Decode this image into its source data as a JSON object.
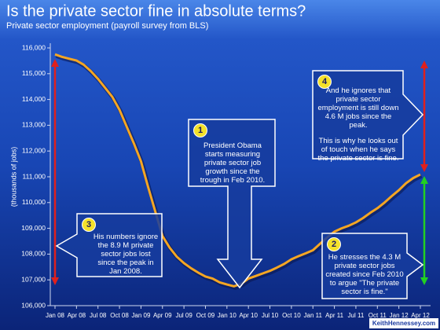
{
  "chart_data": {
    "type": "line",
    "title": "Is the private sector fine in absolute terms?",
    "subtitle": "Private sector employment (payroll survey from BLS)",
    "y_label": "(thousands of jobs)",
    "source": "KeithHennessey.com",
    "color": "#f5a623",
    "categories": [
      "Jan 08",
      null,
      null,
      "Apr 08",
      null,
      null,
      "Jul 08",
      null,
      null,
      "Oct 08",
      null,
      null,
      "Jan 09",
      null,
      null,
      "Apr 09",
      null,
      null,
      "Jul 09",
      null,
      null,
      "Oct 09",
      null,
      null,
      "Jan 10",
      null,
      null,
      "Apr 10",
      null,
      null,
      "Jul 10",
      null,
      null,
      "Oct 10",
      null,
      null,
      "Jan 11",
      null,
      null,
      "Apr 11",
      null,
      null,
      "Jul 11",
      null,
      null,
      "Oct 11",
      null,
      null,
      "Jan 12",
      null,
      null,
      "Apr 12"
    ],
    "values": [
      115750,
      115650,
      115580,
      115510,
      115350,
      115100,
      114800,
      114450,
      114100,
      113600,
      112950,
      112300,
      111600,
      110600,
      109650,
      108700,
      108250,
      107900,
      107650,
      107450,
      107280,
      107130,
      107050,
      106900,
      106820,
      106750,
      106850,
      107050,
      107150,
      107250,
      107350,
      107480,
      107620,
      107800,
      107920,
      108030,
      108150,
      108400,
      108650,
      108870,
      109000,
      109100,
      109230,
      109400,
      109600,
      109780,
      110000,
      110250,
      110480,
      110750,
      110950,
      111090
    ],
    "ylim": [
      106000,
      116000
    ],
    "yticks": [
      {
        "value": 106000,
        "label": "106,000"
      },
      {
        "value": 107000,
        "label": "107,000"
      },
      {
        "value": 108000,
        "label": "108,000"
      },
      {
        "value": 109000,
        "label": "109,000"
      },
      {
        "value": 110000,
        "label": "110,000"
      },
      {
        "value": 111000,
        "label": "111,000"
      },
      {
        "value": 112000,
        "label": "112,000"
      },
      {
        "value": 113000,
        "label": "113,000"
      },
      {
        "value": 114000,
        "label": "114,000"
      },
      {
        "value": 115000,
        "label": "115,000"
      },
      {
        "value": 116000,
        "label": "116,000"
      }
    ],
    "annotations": [
      {
        "number": "1",
        "paragraphs": [
          "President Obama starts measuring private sector job growth since the trough in Feb 2010."
        ]
      },
      {
        "number": "2",
        "paragraphs": [
          "He stresses the 4.3 M private sector jobs created since Feb 2010 to argue \"The private sector is fine.\""
        ]
      },
      {
        "number": "3",
        "paragraphs": [
          "His numbers ignore the 8.9 M private sector jobs lost since the peak in Jan 2008."
        ]
      },
      {
        "number": "4",
        "paragraphs": [
          "And he ignores that private sector employment is still down 4.6 M jobs since the peak.",
          "This is why he looks out of touch when he says the private sector is fine."
        ]
      }
    ]
  }
}
